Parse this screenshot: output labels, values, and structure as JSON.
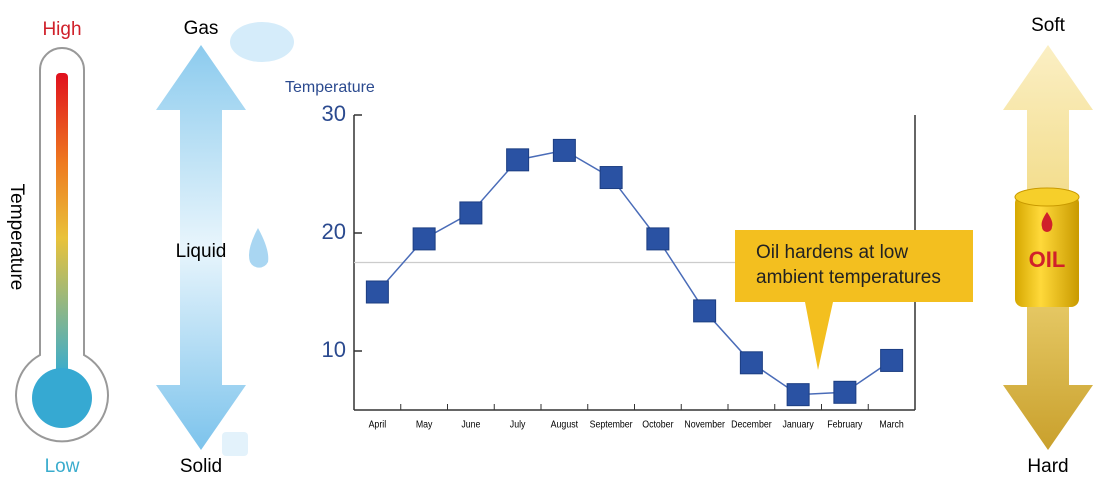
{
  "chart_data": {
    "type": "line",
    "y_label": "Temperature",
    "categories": [
      "April",
      "May",
      "June",
      "July",
      "August",
      "September",
      "October",
      "November",
      "December",
      "January",
      "February",
      "March"
    ],
    "values": [
      15,
      19.5,
      21.7,
      26.2,
      27,
      24.7,
      19.5,
      13.4,
      9,
      6.3,
      6.5,
      9.2
    ],
    "color": "#2a52a3",
    "line_color": "#4a6cb8",
    "ylim": [
      5,
      30
    ],
    "yticks": [
      10,
      20,
      30
    ],
    "reference_line": 17.5,
    "annotation": [
      "Oil hardens at low",
      "ambient temperatures"
    ]
  },
  "thermometer": {
    "high": "High",
    "low": "Low",
    "label": "Temperature"
  },
  "states": {
    "gas": "Gas",
    "liquid": "Liquid",
    "solid": "Solid"
  },
  "oil": {
    "soft": "Soft",
    "hard": "Hard",
    "barrel": "OIL"
  }
}
